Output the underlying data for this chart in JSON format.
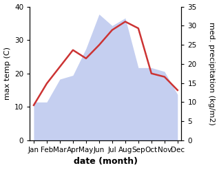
{
  "months": [
    "Jan",
    "Feb",
    "Mar",
    "Apr",
    "May",
    "Jun",
    "Jul",
    "Aug",
    "Sep",
    "Oct",
    "Nov",
    "Dec"
  ],
  "temperature": [
    10.5,
    17.0,
    22.0,
    27.0,
    24.5,
    28.5,
    33.0,
    35.5,
    33.5,
    20.0,
    19.0,
    15.0
  ],
  "precipitation": [
    10.0,
    10.0,
    16.0,
    17.0,
    24.0,
    33.0,
    30.0,
    32.0,
    19.0,
    19.0,
    18.0,
    12.0
  ],
  "temp_color": "#cc3333",
  "precip_fill_color": "#c5cff0",
  "ylabel_left": "max temp (C)",
  "ylabel_right": "med. precipitation (kg/m2)",
  "xlabel": "date (month)",
  "ylim_left": [
    0,
    40
  ],
  "ylim_right": [
    0,
    35
  ],
  "yticks_left": [
    0,
    10,
    20,
    30,
    40
  ],
  "yticks_right": [
    0,
    5,
    10,
    15,
    20,
    25,
    30,
    35
  ],
  "background_color": "#ffffff",
  "label_fontsize": 8,
  "tick_fontsize": 7.5,
  "xlabel_fontsize": 9
}
